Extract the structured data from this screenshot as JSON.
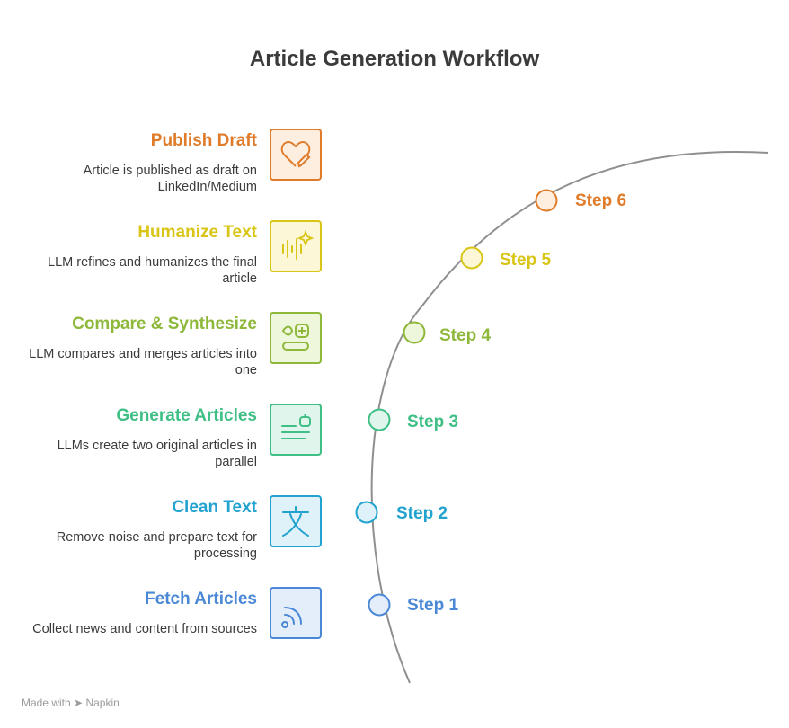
{
  "title": "Article Generation Workflow",
  "steps": [
    {
      "title": "Publish Draft",
      "desc": "Article is published as draft on LinkedIn/Medium",
      "step": "Step 6",
      "color": "#e07b2a",
      "fill": "#fdeee0",
      "icon": "heart-pencil-icon"
    },
    {
      "title": "Humanize Text",
      "desc": "LLM refines and humanizes the final article",
      "step": "Step 5",
      "color": "#d9c516",
      "fill": "#fcf7d6",
      "icon": "sparkle-audio-icon"
    },
    {
      "title": "Compare & Synthesize",
      "desc": "LLM compares and merges articles into one",
      "step": "Step 4",
      "color": "#8db83a",
      "fill": "#eef6dc",
      "icon": "merge-icon"
    },
    {
      "title": "Generate Articles",
      "desc": "LLMs create two original articles in parallel",
      "step": "Step 3",
      "color": "#3fbf86",
      "fill": "#e0f6ec",
      "icon": "robot-text-icon"
    },
    {
      "title": "Clean Text",
      "desc": "Remove noise and prepare text for processing",
      "step": "Step 2",
      "color": "#22a3cf",
      "fill": "#dff1f9",
      "icon": "translate-icon"
    },
    {
      "title": "Fetch Articles",
      "desc": "Collect news and content from sources",
      "step": "Step 1",
      "color": "#4a88d6",
      "fill": "#e4eefa",
      "icon": "rss-icon"
    }
  ],
  "footer": {
    "prefix": "Made with",
    "brand": "Napkin"
  }
}
